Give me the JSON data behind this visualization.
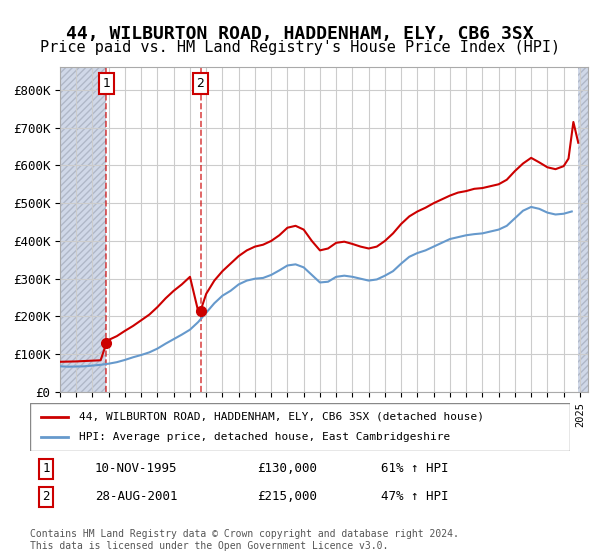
{
  "title": "44, WILBURTON ROAD, HADDENHAM, ELY, CB6 3SX",
  "subtitle": "Price paid vs. HM Land Registry's House Price Index (HPI)",
  "title_fontsize": 13,
  "subtitle_fontsize": 11,
  "background_color": "#ffffff",
  "plot_bg_color": "#ffffff",
  "hatch_color": "#d0d8e8",
  "grid_color": "#cccccc",
  "ylabel_ticks": [
    "£0",
    "£100K",
    "£200K",
    "£300K",
    "£400K",
    "£500K",
    "£600K",
    "£700K",
    "£800K"
  ],
  "ytick_values": [
    0,
    100000,
    200000,
    300000,
    400000,
    500000,
    600000,
    700000,
    800000
  ],
  "ylim": [
    0,
    860000
  ],
  "xlim_start": 1993.0,
  "xlim_end": 2025.5,
  "sale1_date": 1995.86,
  "sale1_price": 130000,
  "sale1_label": "1",
  "sale2_date": 2001.65,
  "sale2_price": 215000,
  "sale2_label": "2",
  "legend_line1": "44, WILBURTON ROAD, HADDENHAM, ELY, CB6 3SX (detached house)",
  "legend_line2": "HPI: Average price, detached house, East Cambridgeshire",
  "sale_color": "#cc0000",
  "hpi_color": "#6699cc",
  "annotation1": "1   10-NOV-1995        £130,000        61% ↑ HPI",
  "annotation2": "2   28-AUG-2001        £215,000        47% ↑ HPI",
  "footer": "Contains HM Land Registry data © Crown copyright and database right 2024.\nThis data is licensed under the Open Government Licence v3.0.",
  "hpi_data": {
    "dates": [
      1993.0,
      1993.5,
      1994.0,
      1994.5,
      1995.0,
      1995.5,
      1996.0,
      1996.5,
      1997.0,
      1997.5,
      1998.0,
      1998.5,
      1999.0,
      1999.5,
      2000.0,
      2000.5,
      2001.0,
      2001.5,
      2002.0,
      2002.5,
      2003.0,
      2003.5,
      2004.0,
      2004.5,
      2005.0,
      2005.5,
      2006.0,
      2006.5,
      2007.0,
      2007.5,
      2008.0,
      2008.5,
      2009.0,
      2009.5,
      2010.0,
      2010.5,
      2011.0,
      2011.5,
      2012.0,
      2012.5,
      2013.0,
      2013.5,
      2014.0,
      2014.5,
      2015.0,
      2015.5,
      2016.0,
      2016.5,
      2017.0,
      2017.5,
      2018.0,
      2018.5,
      2019.0,
      2019.5,
      2020.0,
      2020.5,
      2021.0,
      2021.5,
      2022.0,
      2022.5,
      2023.0,
      2023.5,
      2024.0,
      2024.5
    ],
    "values": [
      68000,
      67000,
      67500,
      68000,
      70000,
      72000,
      75000,
      79000,
      85000,
      92000,
      98000,
      105000,
      115000,
      128000,
      140000,
      152000,
      165000,
      185000,
      210000,
      235000,
      255000,
      268000,
      285000,
      295000,
      300000,
      302000,
      310000,
      322000,
      335000,
      338000,
      330000,
      310000,
      290000,
      292000,
      305000,
      308000,
      305000,
      300000,
      295000,
      298000,
      308000,
      320000,
      340000,
      358000,
      368000,
      375000,
      385000,
      395000,
      405000,
      410000,
      415000,
      418000,
      420000,
      425000,
      430000,
      440000,
      460000,
      480000,
      490000,
      485000,
      475000,
      470000,
      472000,
      478000
    ]
  },
  "price_data": {
    "dates": [
      1993.0,
      1993.5,
      1994.0,
      1994.5,
      1995.0,
      1995.5,
      1995.86,
      1996.0,
      1996.5,
      1997.0,
      1997.5,
      1998.0,
      1998.5,
      1999.0,
      1999.5,
      2000.0,
      2000.5,
      2001.0,
      2001.5,
      2001.65,
      2002.0,
      2002.5,
      2003.0,
      2003.5,
      2004.0,
      2004.5,
      2005.0,
      2005.5,
      2006.0,
      2006.5,
      2007.0,
      2007.5,
      2008.0,
      2008.5,
      2009.0,
      2009.5,
      2010.0,
      2010.5,
      2011.0,
      2011.5,
      2012.0,
      2012.5,
      2013.0,
      2013.5,
      2014.0,
      2014.5,
      2015.0,
      2015.5,
      2016.0,
      2016.5,
      2017.0,
      2017.5,
      2018.0,
      2018.5,
      2019.0,
      2019.5,
      2020.0,
      2020.5,
      2021.0,
      2021.5,
      2022.0,
      2022.5,
      2023.0,
      2023.5,
      2024.0,
      2024.3,
      2024.6,
      2024.9
    ],
    "values": [
      80000,
      80500,
      81000,
      82000,
      83000,
      84000,
      130000,
      138000,
      148000,
      162000,
      175000,
      190000,
      205000,
      225000,
      248000,
      268000,
      285000,
      305000,
      215000,
      215000,
      260000,
      295000,
      320000,
      340000,
      360000,
      375000,
      385000,
      390000,
      400000,
      415000,
      435000,
      440000,
      430000,
      400000,
      375000,
      380000,
      395000,
      398000,
      392000,
      385000,
      380000,
      385000,
      400000,
      420000,
      445000,
      465000,
      478000,
      488000,
      500000,
      510000,
      520000,
      528000,
      532000,
      538000,
      540000,
      545000,
      550000,
      562000,
      585000,
      605000,
      620000,
      608000,
      595000,
      590000,
      598000,
      618000,
      715000,
      660000
    ]
  }
}
